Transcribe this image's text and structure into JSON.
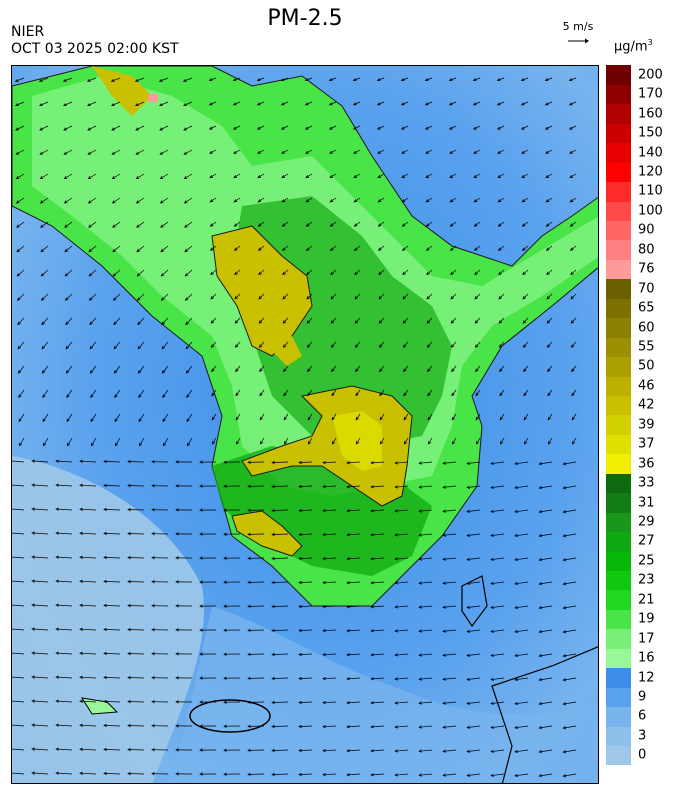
{
  "header": {
    "title": "PM-2.5",
    "agency": "NIER",
    "timestamp": "OCT 03 2025 02:00 KST",
    "wind_reference": "5 m/s",
    "unit_base": "µg/m",
    "unit_exp": "3"
  },
  "legend": {
    "labels": [
      "0",
      "3",
      "6",
      "9",
      "12",
      "16",
      "17",
      "19",
      "21",
      "23",
      "25",
      "27",
      "29",
      "31",
      "33",
      "36",
      "37",
      "39",
      "42",
      "46",
      "50",
      "55",
      "60",
      "65",
      "70",
      "76",
      "80",
      "90",
      "100",
      "110",
      "120",
      "140",
      "150",
      "160",
      "170",
      "200"
    ],
    "colors": [
      "#9fc8e8",
      "#8ec0ec",
      "#78b4ee",
      "#5aa2ee",
      "#3d8ee8",
      "#98f898",
      "#78f078",
      "#48e448",
      "#20d820",
      "#10c810",
      "#08b808",
      "#10a810",
      "#1a961a",
      "#147c14",
      "#0e6a0e",
      "#f0f000",
      "#e0e000",
      "#d4d000",
      "#c8c000",
      "#bcb000",
      "#aca000",
      "#9c9000",
      "#8c8000",
      "#7c7000",
      "#6a6000",
      "#ff9a9a",
      "#ff8080",
      "#ff6666",
      "#ff4a4a",
      "#ff2a2a",
      "#ff0000",
      "#e80000",
      "#cc0000",
      "#b00000",
      "#900000",
      "#700000"
    ]
  },
  "map": {
    "colors": {
      "sea_far": "#9fc8e8",
      "sea_mid": "#78b4ee",
      "sea_near": "#3d8ee8",
      "good": "#48e448",
      "good_light": "#98f898",
      "good_dark": "#10a810",
      "moderate": "#c8c000",
      "moderate_light": "#e0e000"
    }
  }
}
